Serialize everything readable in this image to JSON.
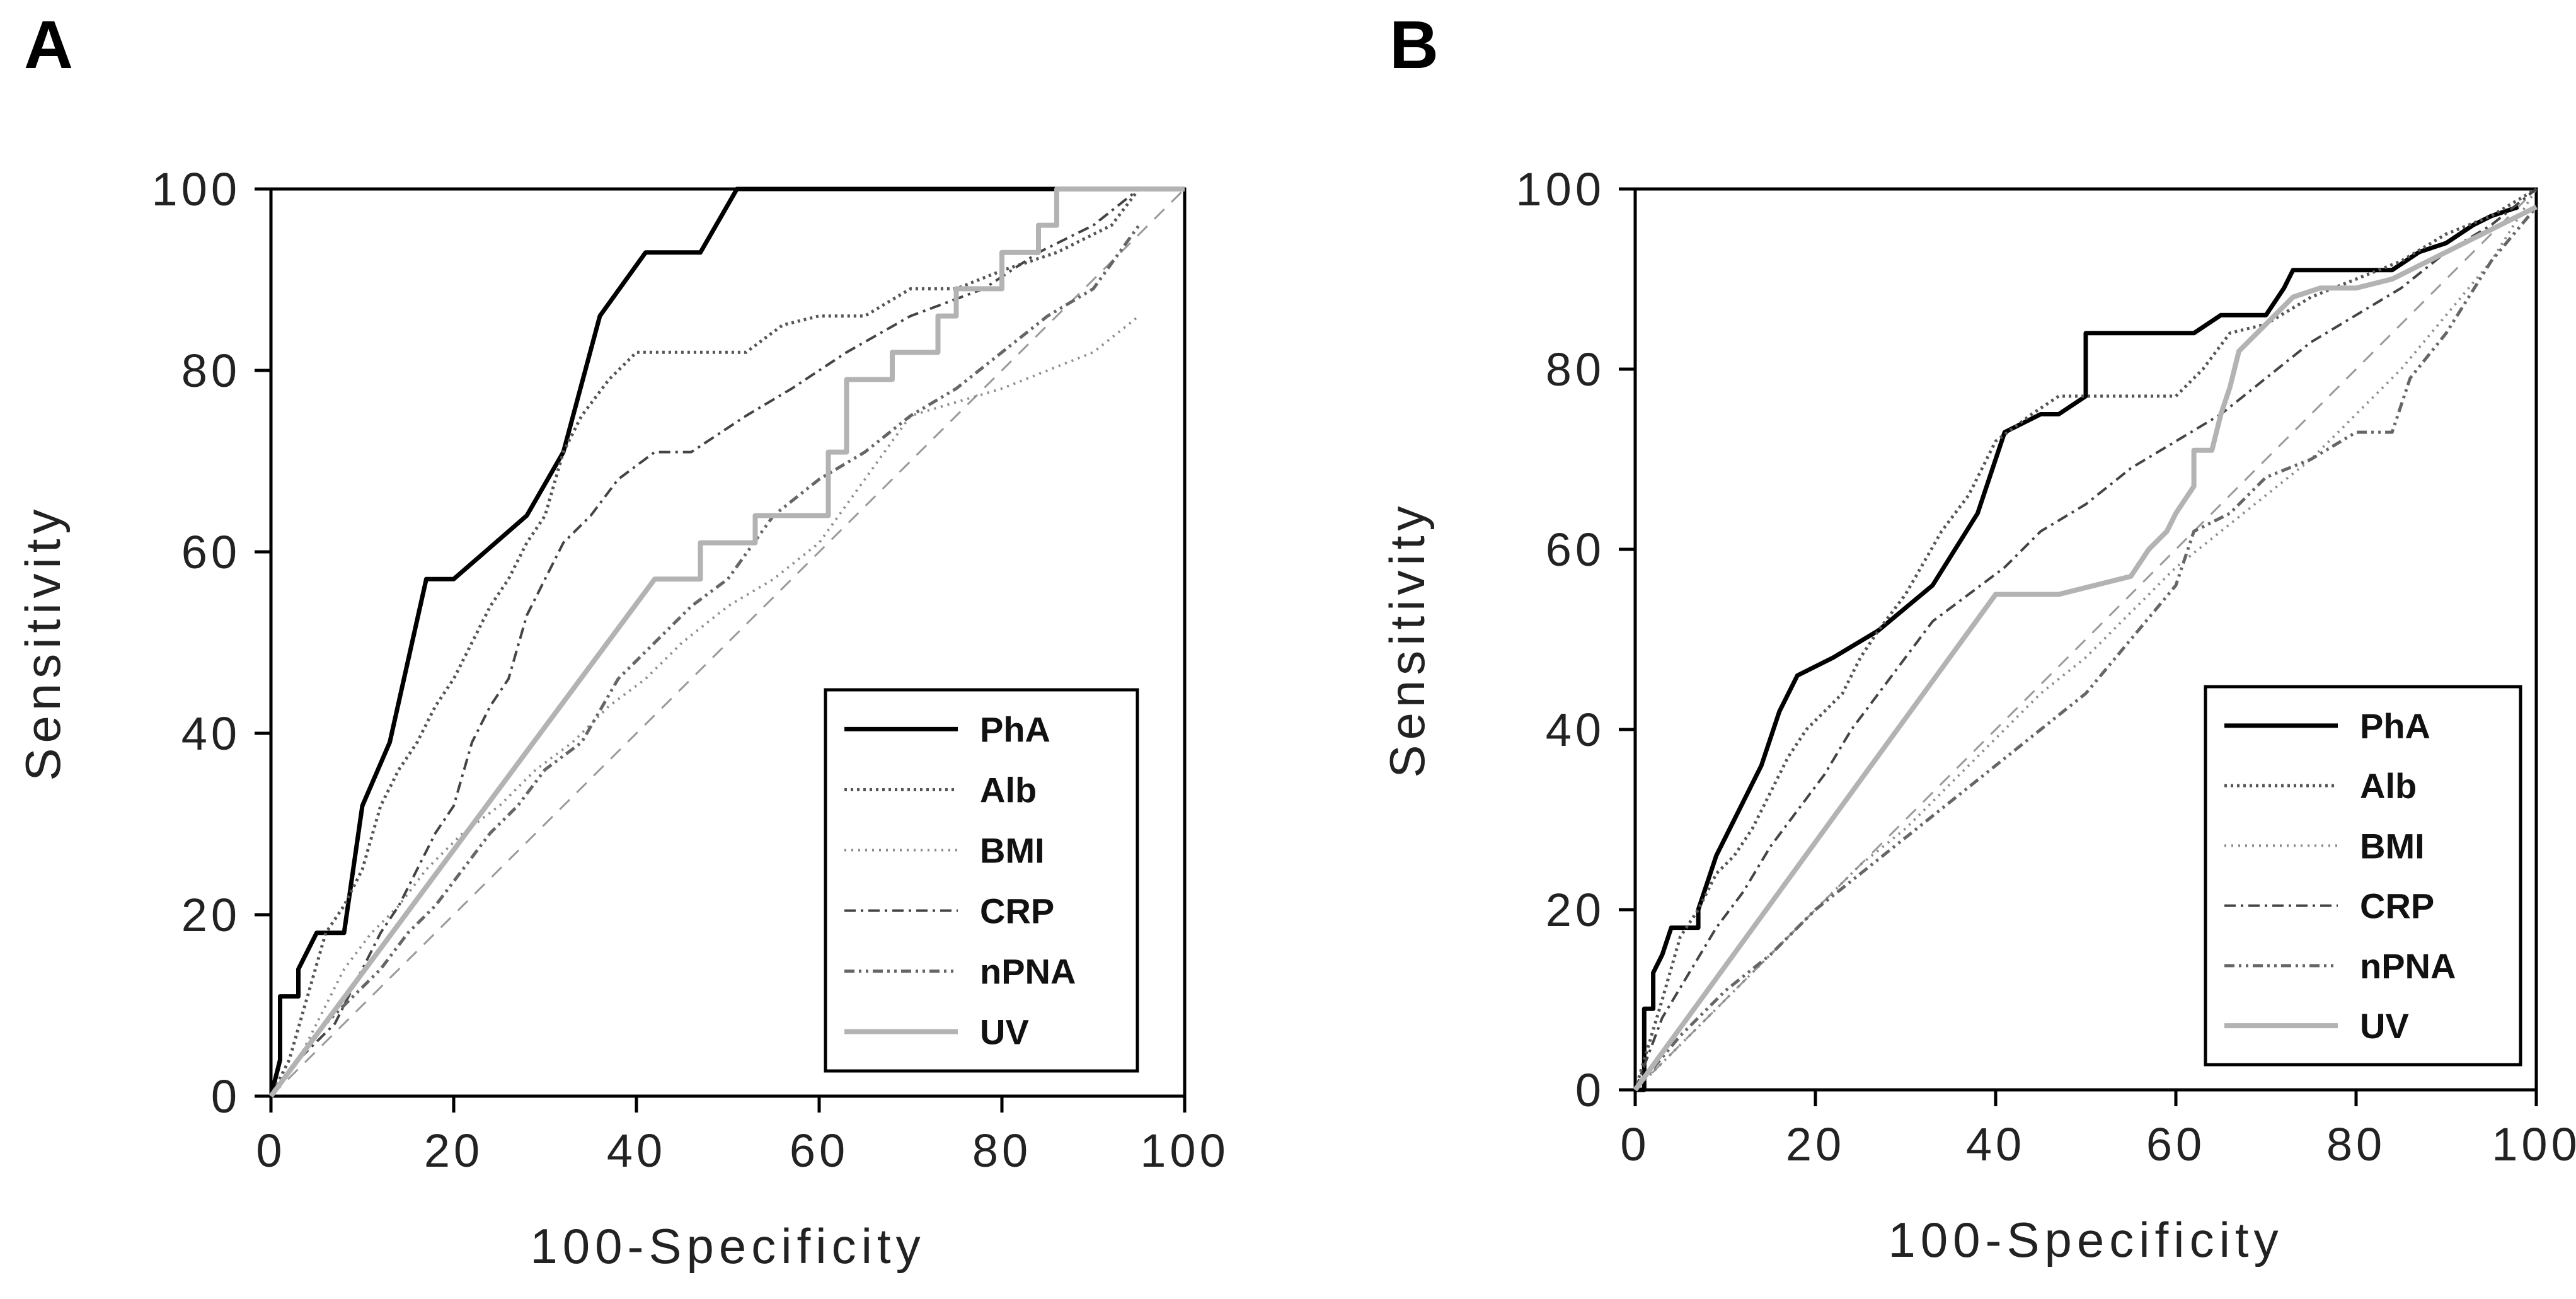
{
  "chart_data": [
    {
      "type": "line",
      "panel_label": "A",
      "xlabel": "100-Specificity",
      "ylabel": "Sensitivity",
      "xlim": [
        0,
        100
      ],
      "ylim": [
        0,
        100
      ],
      "xticks": [
        "0",
        "20",
        "40",
        "60",
        "80",
        "100"
      ],
      "yticks": [
        "0",
        "20",
        "40",
        "60",
        "80",
        "100"
      ],
      "grid": false,
      "legend_position": "bottom-right",
      "diagonal_reference": true,
      "series": [
        {
          "name": "PhA",
          "style": "solid-black",
          "x": [
            0,
            1,
            1,
            3,
            3,
            5,
            8,
            10,
            13,
            17,
            20,
            28,
            32,
            36,
            41,
            47,
            51,
            95
          ],
          "y": [
            0,
            4,
            11,
            11,
            14,
            18,
            18,
            32,
            39,
            57,
            57,
            64,
            71,
            86,
            93,
            93,
            100,
            100
          ]
        },
        {
          "name": "Alb",
          "style": "dotted-dark",
          "x": [
            0,
            2,
            4,
            6,
            8,
            10,
            12,
            14,
            16,
            18,
            20,
            22,
            24,
            26,
            28,
            30,
            32,
            34,
            37,
            40,
            44,
            47,
            52,
            56,
            60,
            65,
            70,
            75,
            80,
            86,
            92,
            95
          ],
          "y": [
            0,
            4,
            11,
            18,
            21,
            25,
            32,
            36,
            39,
            43,
            46,
            50,
            54,
            57,
            61,
            64,
            71,
            75,
            79,
            82,
            82,
            82,
            82,
            85,
            86,
            86,
            89,
            89,
            91,
            93,
            96,
            100
          ]
        },
        {
          "name": "BMI",
          "style": "dotted-light",
          "x": [
            0,
            3,
            6,
            8,
            11,
            14,
            17,
            21,
            25,
            29,
            33,
            37,
            41,
            45,
            50,
            55,
            60,
            65,
            70,
            80,
            90,
            95
          ],
          "y": [
            0,
            4,
            10,
            14,
            18,
            21,
            25,
            29,
            32,
            36,
            39,
            43,
            46,
            50,
            54,
            57,
            61,
            68,
            75,
            78,
            82,
            86
          ]
        },
        {
          "name": "CRP",
          "style": "dash-dot",
          "x": [
            0,
            3,
            7,
            10,
            12,
            14,
            16,
            18,
            20,
            22,
            24,
            26,
            28,
            30,
            32,
            35,
            38,
            42,
            46,
            52,
            57,
            63,
            70,
            78,
            84,
            90,
            95
          ],
          "y": [
            0,
            4,
            8,
            14,
            18,
            21,
            25,
            29,
            32,
            39,
            43,
            46,
            53,
            57,
            61,
            64,
            68,
            71,
            71,
            75,
            78,
            82,
            86,
            89,
            93,
            96,
            100
          ]
        },
        {
          "name": "nPNA",
          "style": "dash-dot-dot",
          "x": [
            0,
            3,
            6,
            9,
            12,
            15,
            18,
            21,
            24,
            27,
            30,
            34,
            38,
            42,
            46,
            50,
            55,
            60,
            65,
            70,
            75,
            80,
            85,
            90,
            95
          ],
          "y": [
            0,
            4,
            8,
            11,
            14,
            18,
            21,
            25,
            29,
            32,
            36,
            39,
            46,
            50,
            54,
            57,
            64,
            68,
            71,
            75,
            78,
            82,
            86,
            89,
            96
          ]
        },
        {
          "name": "UV",
          "style": "solid-gray",
          "x": [
            0,
            42,
            42,
            47,
            47,
            53,
            53,
            57,
            57,
            61,
            61,
            63,
            63,
            67,
            67,
            68,
            68,
            71,
            71,
            73,
            73,
            75,
            75,
            77,
            77,
            80,
            80,
            84,
            84,
            86,
            86,
            91,
            100
          ],
          "y": [
            0,
            57,
            57,
            57,
            61,
            61,
            64,
            64,
            64,
            64,
            71,
            71,
            79,
            79,
            79,
            79,
            82,
            82,
            82,
            82,
            86,
            86,
            89,
            89,
            89,
            89,
            93,
            93,
            96,
            96,
            100,
            100,
            100
          ]
        }
      ]
    },
    {
      "type": "line",
      "panel_label": "B",
      "xlabel": "100-Specificity",
      "ylabel": "Sensitivity",
      "xlim": [
        0,
        100
      ],
      "ylim": [
        0,
        100
      ],
      "xticks": [
        "0",
        "20",
        "40",
        "60",
        "80",
        "100"
      ],
      "yticks": [
        "0",
        "20",
        "40",
        "60",
        "80",
        "100"
      ],
      "grid": false,
      "legend_position": "bottom-right",
      "diagonal_reference": true,
      "series": [
        {
          "name": "PhA",
          "style": "solid-black",
          "x": [
            0,
            1,
            1,
            2,
            2,
            3,
            3,
            4,
            4,
            7,
            7,
            9,
            11,
            14,
            16,
            18,
            22,
            27,
            33,
            38,
            41,
            45,
            47,
            47,
            50,
            50,
            55,
            60,
            62,
            62,
            65,
            70,
            70,
            72,
            73,
            80,
            84,
            87,
            90,
            93,
            95,
            98
          ],
          "y": [
            0,
            0,
            9,
            9,
            13,
            15,
            15,
            18,
            18,
            18,
            20,
            26,
            30,
            36,
            42,
            46,
            48,
            51,
            56,
            64,
            73,
            75,
            75,
            75,
            77,
            84,
            84,
            84,
            84,
            84,
            86,
            86,
            86,
            89,
            91,
            91,
            91,
            93,
            94,
            96,
            97,
            98
          ]
        },
        {
          "name": "Alb",
          "style": "dotted-dark",
          "x": [
            0,
            3,
            5,
            7,
            9,
            11,
            13,
            15,
            17,
            19,
            21,
            23,
            25,
            27,
            30,
            34,
            37,
            40,
            44,
            47,
            50,
            55,
            60,
            63,
            66,
            70,
            75,
            80,
            85,
            90,
            95,
            100
          ],
          "y": [
            0,
            10,
            17,
            20,
            24,
            26,
            29,
            33,
            37,
            40,
            42,
            44,
            48,
            51,
            55,
            62,
            66,
            72,
            75,
            77,
            77,
            77,
            77,
            80,
            84,
            85,
            88,
            90,
            92,
            95,
            97,
            100
          ]
        },
        {
          "name": "BMI",
          "style": "dotted-light",
          "x": [
            0,
            5,
            10,
            15,
            20,
            25,
            30,
            35,
            40,
            45,
            50,
            55,
            60,
            65,
            70,
            75,
            80,
            85,
            90,
            95,
            100
          ],
          "y": [
            0,
            5,
            10,
            15,
            20,
            25,
            29,
            34,
            39,
            44,
            48,
            53,
            58,
            62,
            66,
            70,
            75,
            80,
            86,
            92,
            100
          ]
        },
        {
          "name": "CRP",
          "style": "dash-dot",
          "x": [
            0,
            3,
            6,
            9,
            12,
            15,
            18,
            21,
            24,
            27,
            30,
            33,
            37,
            41,
            45,
            50,
            55,
            60,
            65,
            70,
            75,
            80,
            85,
            90,
            95,
            100
          ],
          "y": [
            0,
            8,
            13,
            18,
            22,
            27,
            31,
            35,
            40,
            44,
            48,
            52,
            55,
            58,
            62,
            65,
            69,
            72,
            75,
            79,
            83,
            86,
            89,
            93,
            96,
            100
          ]
        },
        {
          "name": "nPNA",
          "style": "dash-dot-dot",
          "x": [
            0,
            5,
            10,
            15,
            20,
            25,
            30,
            35,
            40,
            45,
            50,
            55,
            60,
            62,
            66,
            70,
            75,
            80,
            84,
            86,
            90,
            95,
            100
          ],
          "y": [
            0,
            6,
            11,
            15,
            20,
            24,
            28,
            32,
            36,
            40,
            44,
            50,
            56,
            62,
            64,
            68,
            70,
            73,
            73,
            79,
            84,
            92,
            98
          ]
        },
        {
          "name": "UV",
          "style": "solid-gray",
          "x": [
            0,
            40,
            47,
            55,
            55,
            57,
            57,
            59,
            59,
            60,
            60,
            62,
            62,
            64,
            65,
            66,
            67,
            70,
            73,
            76,
            78,
            80,
            84,
            88,
            92,
            96,
            100
          ],
          "y": [
            0,
            55,
            55,
            57,
            57,
            60,
            60,
            62,
            62,
            64,
            64,
            67,
            71,
            71,
            75,
            78,
            82,
            85,
            88,
            89,
            89,
            89,
            90,
            92,
            94,
            96,
            98
          ]
        }
      ]
    }
  ]
}
